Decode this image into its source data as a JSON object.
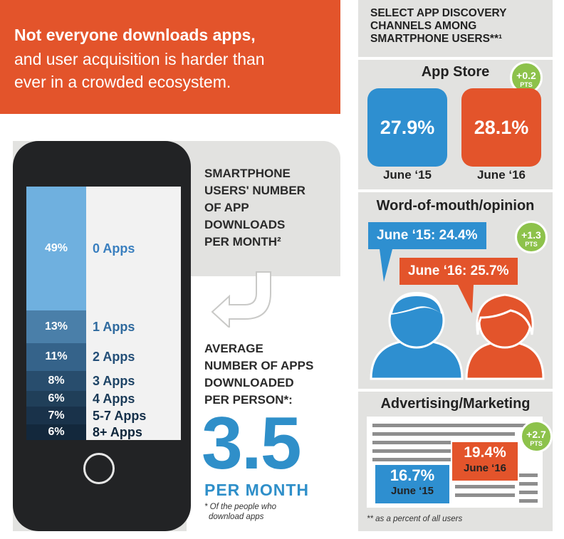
{
  "banner": {
    "line1": "Not everyone downloads apps,",
    "line2": "and user acquisition is harder than",
    "line3": "ever in a crowded ecosystem."
  },
  "downloads": {
    "title_lines": [
      "SMARTPHONE",
      "USERS' NUMBER",
      "OF APP",
      "DOWNLOADS",
      "PER MONTH²"
    ],
    "average_lines": [
      "AVERAGE",
      "NUMBER OF APPS",
      "DOWNLOADED",
      "PER PERSON*:"
    ],
    "average_value": "3.5",
    "average_unit": "PER MONTH",
    "footnote_lines": [
      "* Of the people who",
      "download apps"
    ]
  },
  "discovery": {
    "title_lines": [
      "SELECT APP DISCOVERY",
      "CHANNELS AMONG",
      "SMARTPHONE USERS**¹"
    ],
    "app_store": {
      "title": "App Store",
      "badge_delta": "+0.2",
      "badge_unit": "PTS",
      "values": [
        {
          "value": "27.9%",
          "label": "June ‘15"
        },
        {
          "value": "28.1%",
          "label": "June ‘16"
        }
      ]
    },
    "word_of_mouth": {
      "title": "Word-of-mouth/opinion",
      "badge_delta": "+1.3",
      "badge_unit": "PTS",
      "bubble1": "June ‘15: 24.4%",
      "bubble2": "June ‘16: 25.7%"
    },
    "advertising": {
      "title": "Advertising/Marketing",
      "badge_delta": "+2.7",
      "badge_unit": "PTS",
      "box1_value": "16.7%",
      "box1_label": "June ‘15",
      "box2_value": "19.4%",
      "box2_label": "June ‘16"
    },
    "footnote": "** as a percent of all users"
  },
  "colors": {
    "orange": "#e3542b",
    "blue": "#2e8fd0",
    "green": "#8dc24b",
    "grey_panel": "#e2e2e0",
    "phone": "#222325",
    "stack": [
      "#6fb0df",
      "#4a7fa9",
      "#35638a",
      "#284d6d",
      "#203f59",
      "#19324a",
      "#13283c"
    ],
    "stack_label": [
      "#3a7fbf",
      "#2f6a9e",
      "#244f78",
      "#1e4466",
      "#1a3a57",
      "#15304a",
      "#0f263b"
    ]
  },
  "chart_data": [
    {
      "type": "bar",
      "title": "SMARTPHONE USERS' NUMBER OF APP DOWNLOADS PER MONTH²",
      "categories": [
        "0 Apps",
        "1 Apps",
        "2 Apps",
        "3 Apps",
        "4 Apps",
        "5-7 Apps",
        "8+ Apps"
      ],
      "values": [
        49,
        13,
        11,
        8,
        6,
        7,
        6
      ],
      "value_labels": [
        "49%",
        "13%",
        "11%",
        "8%",
        "6%",
        "7%",
        "6%"
      ],
      "unit": "%",
      "stacked": true
    },
    {
      "type": "bar",
      "title": "App Store",
      "categories": [
        "June ‘15",
        "June ‘16"
      ],
      "values": [
        27.9,
        28.1
      ],
      "unit": "%"
    },
    {
      "type": "bar",
      "title": "Word-of-mouth/opinion",
      "categories": [
        "June ‘15",
        "June ‘16"
      ],
      "values": [
        24.4,
        25.7
      ],
      "unit": "%"
    },
    {
      "type": "bar",
      "title": "Advertising/Marketing",
      "categories": [
        "June ‘15",
        "June ‘16"
      ],
      "values": [
        16.7,
        19.4
      ],
      "unit": "%"
    }
  ]
}
